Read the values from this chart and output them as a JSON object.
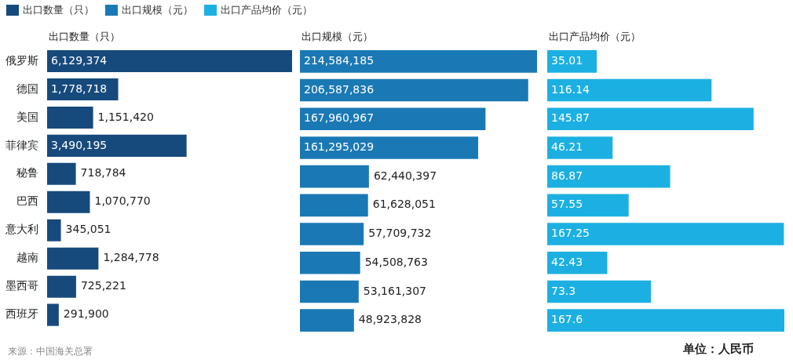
{
  "chart_data": [
    {
      "type": "bar",
      "orientation": "horizontal",
      "title": "出口数量（只）",
      "categories": [
        "俄罗斯",
        "德国",
        "美国",
        "菲律宾",
        "秘鲁",
        "巴西",
        "意大利",
        "越南",
        "墨西哥",
        "西班牙"
      ],
      "series": [
        {
          "name": "出口数量（只）",
          "color": "#174a7c",
          "values": [
            6129374,
            1778718,
            1151420,
            3490195,
            718784,
            1070770,
            345051,
            1284778,
            725221,
            291900
          ],
          "value_labels": [
            "6,129,374",
            "1,778,718",
            "1,151,420",
            "3,490,195",
            "718,784",
            "1,070,770",
            "345,051",
            "1,284,778",
            "725,221",
            "291,900"
          ]
        }
      ],
      "tick_labels": "y",
      "legend": "top left",
      "annotations": [
        "来源：中国海关总署"
      ]
    },
    {
      "type": "bar",
      "orientation": "horizontal",
      "title": "出口规模（元）",
      "categories": [
        null,
        null,
        null,
        null,
        null,
        null,
        null,
        null,
        null,
        null
      ],
      "series": [
        {
          "name": "出口规模（元）",
          "color": "#1a79b4",
          "values": [
            214584185,
            206587836,
            167960967,
            161295029,
            62440397,
            61628051,
            57709732,
            54508763,
            53161307,
            48923828
          ],
          "value_labels": [
            "214,584,185",
            "206,587,836",
            "167,960,967",
            "161,295,029",
            "62,440,397",
            "61,628,051",
            "57,709,732",
            "54,508,763",
            "53,161,307",
            "48,923,828"
          ]
        }
      ],
      "tick_labels": false,
      "legend": "top left"
    },
    {
      "type": "bar",
      "orientation": "horizontal",
      "title": "出口产品均价（元）",
      "categories": [
        null,
        null,
        null,
        null,
        null,
        null,
        null,
        null,
        null,
        null
      ],
      "series": [
        {
          "name": "出口产品均价（元）",
          "color": "#1cb0e2",
          "values": [
            35.01,
            116.14,
            145.87,
            46.21,
            86.87,
            57.55,
            167.25,
            42.43,
            73.3,
            167.6
          ],
          "value_labels": [
            "35.01",
            "116.14",
            "145.87",
            "46.21",
            "86.87",
            "57.55",
            "167.25",
            "42.43",
            "73.3",
            "167.6"
          ]
        }
      ],
      "tick_labels": false,
      "legend": "top left",
      "annotations": [
        "单位：人民币"
      ]
    }
  ]
}
